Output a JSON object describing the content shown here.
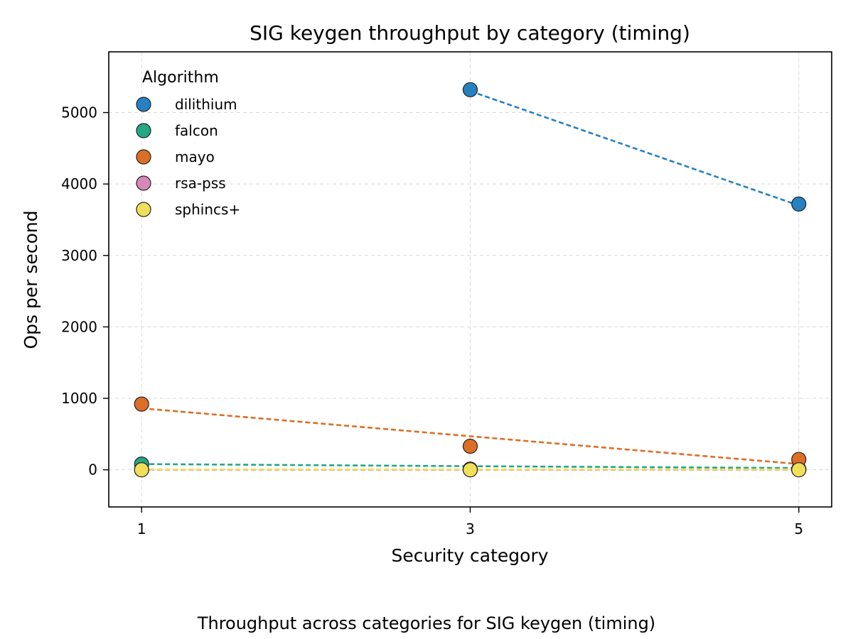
{
  "caption": "Throughput across categories for SIG keygen (timing)",
  "chart_data": {
    "type": "scatter",
    "title": "SIG keygen throughput by category (timing)",
    "xlabel": "Security category",
    "ylabel": "Ops per second",
    "x_ticks": [
      1,
      3,
      5
    ],
    "y_ticks": [
      0,
      1000,
      2000,
      3000,
      4000,
      5000
    ],
    "xlim": [
      0.8,
      5.2
    ],
    "ylim": [
      -520,
      5850
    ],
    "grid": true,
    "legend": {
      "title": "Algorithm",
      "placement": "top-left"
    },
    "series": [
      {
        "name": "dilithium",
        "color": "#2681c2",
        "points": [
          {
            "x": 3,
            "y": 5320
          },
          {
            "x": 5,
            "y": 3720
          }
        ],
        "trend": [
          {
            "x": 3,
            "y": 5300
          },
          {
            "x": 5,
            "y": 3700
          }
        ]
      },
      {
        "name": "falcon",
        "color": "#22a884",
        "points": [
          {
            "x": 1,
            "y": 80
          },
          {
            "x": 3,
            "y": 10
          },
          {
            "x": 5,
            "y": 10
          }
        ],
        "trend": [
          {
            "x": 1,
            "y": 80
          },
          {
            "x": 3,
            "y": 50
          },
          {
            "x": 5,
            "y": 25
          }
        ]
      },
      {
        "name": "mayo",
        "color": "#dd6e26",
        "points": [
          {
            "x": 1,
            "y": 920
          },
          {
            "x": 3,
            "y": 330
          },
          {
            "x": 5,
            "y": 145
          }
        ],
        "trend": [
          {
            "x": 1,
            "y": 860
          },
          {
            "x": 3,
            "y": 470
          },
          {
            "x": 5,
            "y": 80
          }
        ]
      },
      {
        "name": "rsa-pss",
        "color": "#d689b8",
        "points": [
          {
            "x": 1,
            "y": 0
          },
          {
            "x": 3,
            "y": 0
          },
          {
            "x": 5,
            "y": 0
          }
        ],
        "trend": [
          {
            "x": 1,
            "y": 0
          },
          {
            "x": 5,
            "y": 0
          }
        ]
      },
      {
        "name": "sphincs+",
        "color": "#f0e059",
        "points": [
          {
            "x": 1,
            "y": 0
          },
          {
            "x": 3,
            "y": 0
          },
          {
            "x": 5,
            "y": 0
          }
        ],
        "trend": [
          {
            "x": 1,
            "y": 5
          },
          {
            "x": 5,
            "y": 5
          }
        ]
      }
    ]
  }
}
